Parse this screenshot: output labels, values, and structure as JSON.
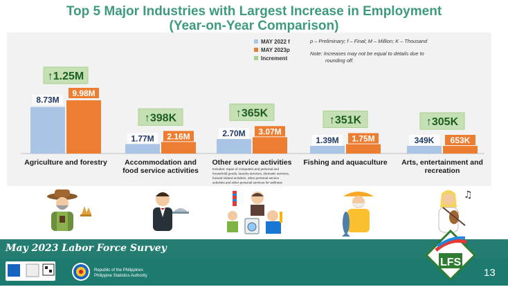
{
  "title_line1": "Top 5 Major Industries with Largest Increase in Employment",
  "title_line2": "(Year-on-Year Comparison)",
  "legend": {
    "items": [
      {
        "label": "MAY 2022 f",
        "color": "#a9c4e4"
      },
      {
        "label": "MAY 2023p",
        "color": "#ed7d31"
      },
      {
        "label": "Increment",
        "color": "#a9d18e"
      }
    ]
  },
  "notes": {
    "abbrev": "p – Preliminary; f – Final; M – Million; K – Thousand",
    "note_line1": "Note: Increases may not be equal to details due to",
    "note_line2": "rounding off."
  },
  "chart_data": {
    "type": "bar",
    "categories": [
      "Agriculture and forestry",
      "Accommodation and food service activities",
      "Other service activities",
      "Fishing and aquaculture",
      "Arts, entertainment and recreation"
    ],
    "category_label_lines": [
      [
        "Agriculture and forestry"
      ],
      [
        "Accommodation and",
        "food service activities"
      ],
      [
        "Other service activities"
      ],
      [
        "Fishing and aquaculture"
      ],
      [
        "Arts, entertainment and",
        "recreation"
      ]
    ],
    "series": [
      {
        "name": "MAY 2022 f",
        "values": [
          8.73,
          1.77,
          2.7,
          1.39,
          0.349
        ],
        "labels": [
          "8.73M",
          "1.77M",
          "2.70M",
          "1.39M",
          "349K"
        ]
      },
      {
        "name": "MAY 2023p",
        "values": [
          9.98,
          2.16,
          3.07,
          1.75,
          0.653
        ],
        "labels": [
          "9.98M",
          "2.16M",
          "3.07M",
          "1.75M",
          "653K"
        ]
      }
    ],
    "increments": [
      "↑1.25M",
      "↑398K",
      "↑365K",
      "↑351K",
      "↑305K"
    ],
    "sub_note": "Includes: repair of computers and personal and household goods, laundry services, domestic services, funeral related activities, other personal service activities and other personal services for wellness except sport activities",
    "colors": {
      "may2022": "#a9c4e4",
      "may2023": "#ed7d31",
      "increment_bg": "#c5e0b4",
      "increment_text": "#2e7d32"
    }
  },
  "footer": {
    "survey": "May 2023 Labor Force Survey",
    "psa_line1": "Republic of the Philippines",
    "psa_line2": "Philippine Statistics Authority",
    "page_number": "13"
  }
}
